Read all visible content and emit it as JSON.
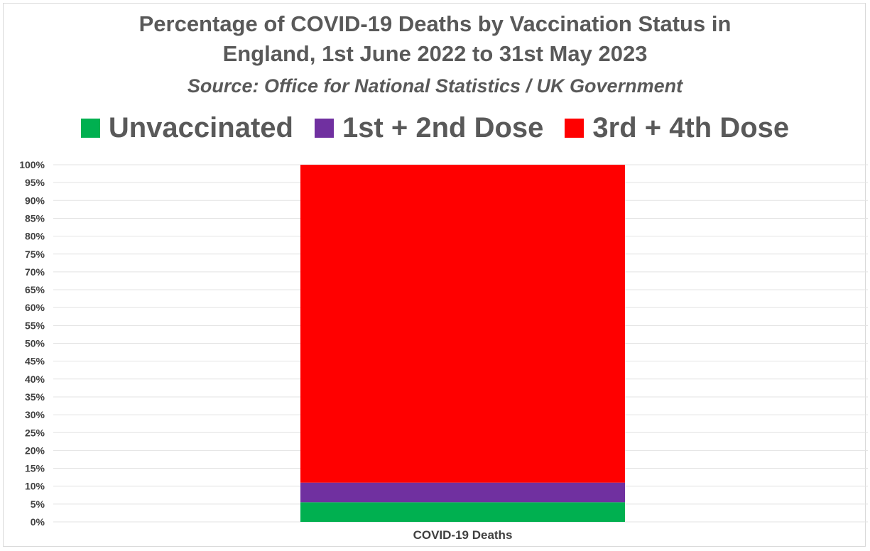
{
  "chart_data": {
    "type": "bar",
    "stacked": true,
    "title": "Percentage of COVID-19 Deaths by Vaccination Status in",
    "title_line2": "England, 1st June 2022 to 31st May 2023",
    "subtitle": "Source: Office for National Statistics / UK Government",
    "categories": [
      "COVID-19 Deaths"
    ],
    "series": [
      {
        "name": "Unvaccinated",
        "values": [
          5.5
        ],
        "color": "#00b050"
      },
      {
        "name": "1st + 2nd Dose",
        "values": [
          5.5
        ],
        "color": "#7030a0"
      },
      {
        "name": "3rd + 4th Dose",
        "values": [
          89
        ],
        "color": "#ff0000"
      }
    ],
    "ylim": [
      0,
      100
    ],
    "yticks": [
      "0%",
      "5%",
      "10%",
      "15%",
      "20%",
      "25%",
      "30%",
      "35%",
      "40%",
      "45%",
      "50%",
      "55%",
      "60%",
      "65%",
      "70%",
      "75%",
      "80%",
      "85%",
      "90%",
      "95%",
      "100%"
    ],
    "grid": true,
    "legend_position": "top"
  }
}
